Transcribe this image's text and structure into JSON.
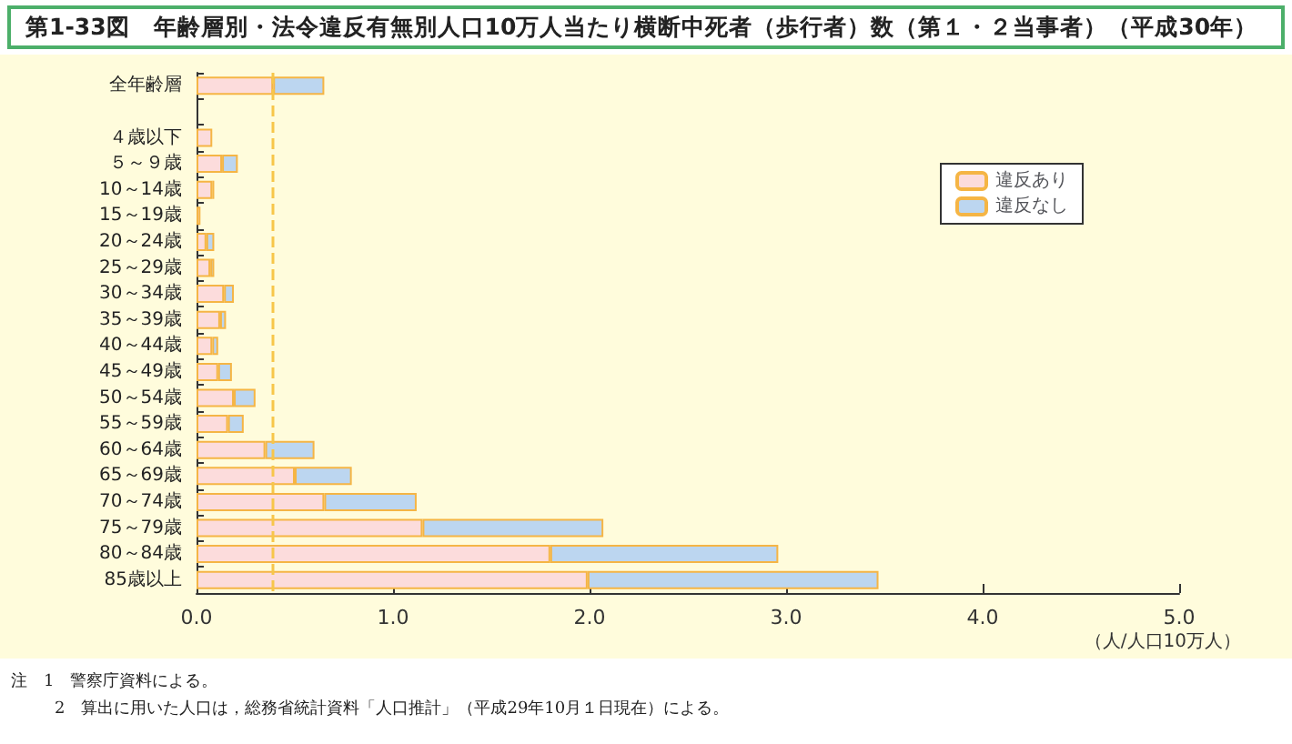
{
  "chart_data": {
    "type": "bar",
    "orientation": "horizontal",
    "stacked": true,
    "title": "第1-33図　年齢層別・法令違反有無別人口10万人当たり横断中死者（歩行者）数（第１・２当事者）（平成30年）",
    "xlabel": "（人/人口10万人）",
    "categories": [
      "全年齢層",
      null,
      "４歳以下",
      "５～９歳",
      "10～14歳",
      "15～19歳",
      "20～24歳",
      "25～29歳",
      "30～34歳",
      "35～39歳",
      "40～44歳",
      "45～49歳",
      "50～54歳",
      "55～59歳",
      "60～64歳",
      "65～69歳",
      "70～74歳",
      "75～79歳",
      "80～84歳",
      "85歳以上"
    ],
    "series": [
      {
        "name": "違反あり",
        "color": "#fcdcdc",
        "values": [
          0.39,
          null,
          0.08,
          0.13,
          0.08,
          0.02,
          0.05,
          0.07,
          0.14,
          0.12,
          0.08,
          0.11,
          0.19,
          0.16,
          0.35,
          0.5,
          0.65,
          1.15,
          1.8,
          1.99
        ]
      },
      {
        "name": "違反なし",
        "color": "#bcd6f0",
        "values": [
          0.26,
          null,
          null,
          0.08,
          0.01,
          null,
          0.04,
          0.02,
          0.05,
          0.03,
          0.03,
          0.07,
          0.11,
          0.08,
          0.25,
          0.29,
          0.47,
          0.92,
          1.16,
          1.48
        ]
      }
    ],
    "xlim": [
      0,
      5
    ],
    "xticks": [
      {
        "value": 0,
        "label": "0.0"
      },
      {
        "value": 1,
        "label": "1.0"
      },
      {
        "value": 2,
        "label": "2.0"
      },
      {
        "value": 3,
        "label": "3.0"
      },
      {
        "value": 4,
        "label": "4.0"
      },
      {
        "value": 5,
        "label": "5.0"
      }
    ],
    "ref_lines": [
      {
        "axis": "x",
        "value": 0.39,
        "color": "#f7c64a",
        "line_style": "dashed"
      }
    ],
    "legend": "top right",
    "grid": false,
    "annotations": [
      "注　1　警察庁資料による。",
      "2　算出に用いた人口は，総務省統計資料「人口推計」（平成29年10月１日現在）による。"
    ]
  }
}
